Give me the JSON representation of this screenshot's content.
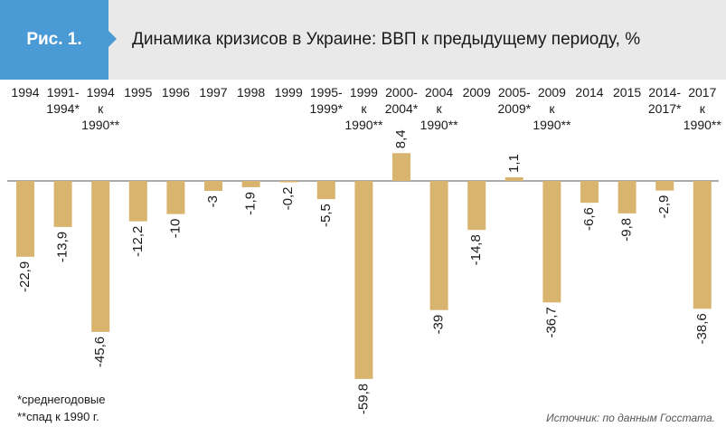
{
  "figure": {
    "label": "Рис. 1.",
    "title": "Динамика кризисов в Украине: ВВП к предыдущему периоду, %"
  },
  "chart_data": {
    "type": "bar",
    "categories": [
      [
        "1994"
      ],
      [
        "1991-",
        "1994*"
      ],
      [
        "1994",
        "к",
        "1990**"
      ],
      [
        "1995"
      ],
      [
        "1996"
      ],
      [
        "1997"
      ],
      [
        "1998"
      ],
      [
        "1999"
      ],
      [
        "1995-",
        "1999*"
      ],
      [
        "1999",
        "к",
        "1990**"
      ],
      [
        "2000-",
        "2004*"
      ],
      [
        "2004",
        "к",
        "1990**"
      ],
      [
        "2009"
      ],
      [
        "2005-",
        "2009*"
      ],
      [
        "2009",
        "к",
        "1990**"
      ],
      [
        "2014"
      ],
      [
        "2015"
      ],
      [
        "2014-",
        "2017*"
      ],
      [
        "2017",
        "к",
        "1990**"
      ]
    ],
    "values": [
      -22.9,
      -13.9,
      -45.6,
      -12.2,
      -10,
      -3,
      -1.9,
      -0.2,
      -5.5,
      -59.8,
      8.4,
      -39,
      -14.8,
      1.1,
      -36.7,
      -6.6,
      -9.8,
      -2.9,
      -38.6
    ],
    "value_labels": [
      "-22,9",
      "-13,9",
      "-45,6",
      "-12,2",
      "-10",
      "-3",
      "-1,9",
      "-0,2",
      "-5,5",
      "-59,8",
      "8,4",
      "-39",
      "-14,8",
      "1,1",
      "-36,7",
      "-6,6",
      "-9,8",
      "-2,9",
      "-38,6"
    ],
    "bar_color": "#d9b46e",
    "axis_color": "#555555",
    "grid": false,
    "legend": "none",
    "label_rotation": "vertical"
  },
  "footnotes": [
    "*среднегодовые",
    "**спад к 1990 г."
  ],
  "source": "Источник: по данным Госстата."
}
